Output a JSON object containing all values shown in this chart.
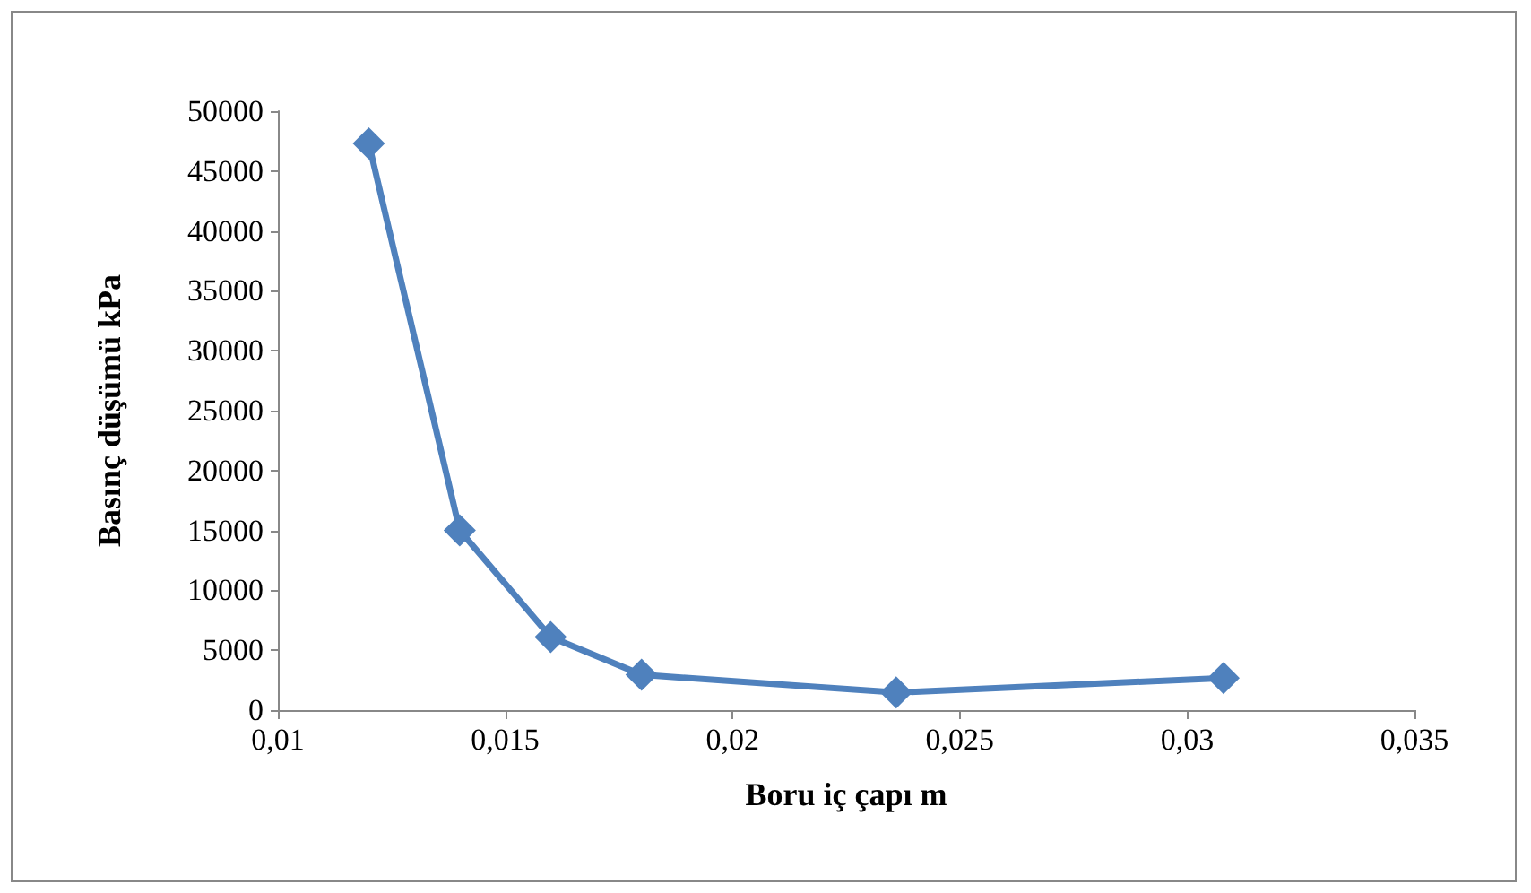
{
  "chart_data": {
    "type": "line",
    "xlabel": "Boru iç çapı m",
    "ylabel": "Basınç düşümü kPa",
    "x": [
      0.012,
      0.014,
      0.016,
      0.018,
      0.0236,
      0.0308
    ],
    "series": [
      {
        "color": "#4f81bd",
        "values": [
          47300,
          15000,
          6100,
          2950,
          1470,
          2680
        ]
      }
    ],
    "xlim": [
      0.01,
      0.035
    ],
    "xticks": [
      {
        "value": 0.01,
        "label": "0,01"
      },
      {
        "value": 0.015,
        "label": "0,015"
      },
      {
        "value": 0.02,
        "label": "0,02"
      },
      {
        "value": 0.025,
        "label": "0,025"
      },
      {
        "value": 0.03,
        "label": "0,03"
      },
      {
        "value": 0.035,
        "label": "0,035"
      }
    ],
    "ylim": [
      0,
      50000
    ],
    "yticks": [
      0,
      5000,
      10000,
      15000,
      20000,
      25000,
      30000,
      35000,
      40000,
      45000,
      50000
    ],
    "grid": false,
    "marker": "diamond",
    "line_style": "solid"
  }
}
